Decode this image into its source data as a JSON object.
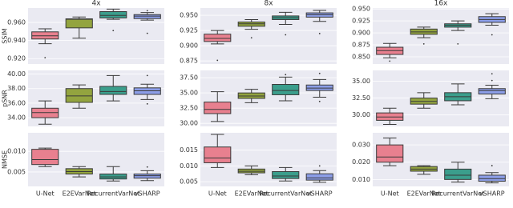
{
  "chart_data": [
    {
      "type": "box",
      "title": "4x",
      "ylabel": "SSIM",
      "colors": [
        "#e8808f",
        "#93a43f",
        "#3b9e8c",
        "#8c9ee8"
      ],
      "ylim": [
        0.914,
        0.976
      ],
      "yticks": [
        {
          "value": 0.92,
          "label": "0.920"
        },
        {
          "value": 0.94,
          "label": "0.940"
        },
        {
          "value": 0.96,
          "label": "0.960"
        }
      ],
      "grid": true,
      "boxes": [
        {
          "whislo": 0.9365,
          "q1": 0.9417,
          "med": 0.9452,
          "q3": 0.9496,
          "whishi": 0.953,
          "fliers": [
            0.921
          ]
        },
        {
          "whislo": 0.9426,
          "q1": 0.954,
          "med": 0.9635,
          "q3": 0.964,
          "whishi": 0.966,
          "fliers": []
        },
        {
          "whislo": 0.9635,
          "q1": 0.965,
          "med": 0.9678,
          "q3": 0.972,
          "whishi": 0.9748,
          "fliers": [
            0.951
          ]
        },
        {
          "whislo": 0.9626,
          "q1": 0.9643,
          "med": 0.967,
          "q3": 0.9687,
          "whishi": 0.971,
          "fliers": [
            0.973,
            0.948
          ]
        }
      ]
    },
    {
      "type": "box",
      "title": "8x",
      "colors": [
        "#e8808f",
        "#93a43f",
        "#3b9e8c",
        "#8c9ee8"
      ],
      "ylim": [
        0.87,
        0.962
      ],
      "yticks": [
        {
          "value": 0.875,
          "label": "0.875"
        },
        {
          "value": 0.9,
          "label": "0.900"
        },
        {
          "value": 0.925,
          "label": "0.925"
        },
        {
          "value": 0.95,
          "label": "0.950"
        }
      ],
      "grid": true,
      "boxes": [
        {
          "whislo": 0.903,
          "q1": 0.907,
          "med": 0.912,
          "q3": 0.919,
          "whishi": 0.925,
          "fliers": [
            0.876
          ]
        },
        {
          "whislo": 0.927,
          "q1": 0.932,
          "med": 0.936,
          "q3": 0.939,
          "whishi": 0.943,
          "fliers": [
            0.913
          ]
        },
        {
          "whislo": 0.935,
          "q1": 0.943,
          "med": 0.946,
          "q3": 0.949,
          "whishi": 0.955,
          "fliers": [
            0.918
          ]
        },
        {
          "whislo": 0.94,
          "q1": 0.947,
          "med": 0.951,
          "q3": 0.954,
          "whishi": 0.958,
          "fliers": [
            0.92
          ]
        }
      ]
    },
    {
      "type": "box",
      "title": "16x",
      "colors": [
        "#e8808f",
        "#93a43f",
        "#3b9e8c",
        "#8c9ee8"
      ],
      "ylim": [
        0.835,
        0.952
      ],
      "yticks": [
        {
          "value": 0.85,
          "label": "0.850"
        },
        {
          "value": 0.875,
          "label": "0.875"
        },
        {
          "value": 0.9,
          "label": "0.900"
        },
        {
          "value": 0.925,
          "label": "0.925"
        },
        {
          "value": 0.95,
          "label": "0.950"
        }
      ],
      "grid": true,
      "boxes": [
        {
          "whislo": 0.848,
          "q1": 0.855,
          "med": 0.863,
          "q3": 0.87,
          "whishi": 0.878,
          "fliers": [
            0.841
          ]
        },
        {
          "whislo": 0.89,
          "q1": 0.897,
          "med": 0.902,
          "q3": 0.908,
          "whishi": 0.912,
          "fliers": [
            0.877
          ]
        },
        {
          "whislo": 0.905,
          "q1": 0.912,
          "med": 0.916,
          "q3": 0.919,
          "whishi": 0.925,
          "fliers": [
            0.877
          ]
        },
        {
          "whislo": 0.916,
          "q1": 0.922,
          "med": 0.928,
          "q3": 0.934,
          "whishi": 0.94,
          "fliers": [
            0.896
          ]
        }
      ]
    },
    {
      "type": "box",
      "ylabel": "pSNR",
      "colors": [
        "#e8808f",
        "#93a43f",
        "#3b9e8c",
        "#8c9ee8"
      ],
      "ylim": [
        32.8,
        40.5
      ],
      "yticks": [
        {
          "value": 34,
          "label": "34.00"
        },
        {
          "value": 36,
          "label": "36.00"
        },
        {
          "value": 38,
          "label": "38.00"
        },
        {
          "value": 40,
          "label": "40.00"
        }
      ],
      "grid": true,
      "boxes": [
        {
          "whislo": 33.1,
          "q1": 34.0,
          "med": 34.7,
          "q3": 35.3,
          "whishi": 36.3,
          "fliers": []
        },
        {
          "whislo": 35.3,
          "q1": 36.1,
          "med": 37.0,
          "q3": 38.0,
          "whishi": 38.5,
          "fliers": []
        },
        {
          "whislo": 36.3,
          "q1": 37.2,
          "med": 37.6,
          "q3": 38.3,
          "whishi": 39.8,
          "fliers": []
        },
        {
          "whislo": 36.5,
          "q1": 37.2,
          "med": 37.7,
          "q3": 38.1,
          "whishi": 38.6,
          "fliers": [
            39.8,
            35.9
          ]
        }
      ]
    },
    {
      "type": "box",
      "colors": [
        "#e8808f",
        "#93a43f",
        "#3b9e8c",
        "#8c9ee8"
      ],
      "ylim": [
        29.5,
        38.7
      ],
      "yticks": [
        {
          "value": 30,
          "label": "30.00"
        },
        {
          "value": 32.5,
          "label": "32.50"
        },
        {
          "value": 35,
          "label": "35.00"
        },
        {
          "value": 37.5,
          "label": "37.50"
        }
      ],
      "grid": true,
      "boxes": [
        {
          "whislo": 30.3,
          "q1": 31.6,
          "med": 32.3,
          "q3": 33.5,
          "whishi": 35.2,
          "fliers": []
        },
        {
          "whislo": 33.4,
          "q1": 34.1,
          "med": 34.5,
          "q3": 35.0,
          "whishi": 35.6,
          "fliers": []
        },
        {
          "whislo": 33.7,
          "q1": 34.7,
          "med": 35.4,
          "q3": 36.4,
          "whishi": 37.6,
          "fliers": [
            38.0
          ]
        },
        {
          "whislo": 34.3,
          "q1": 35.4,
          "med": 35.8,
          "q3": 36.3,
          "whishi": 37.2,
          "fliers": [
            38.2,
            33.6
          ]
        }
      ]
    },
    {
      "type": "box",
      "colors": [
        "#e8808f",
        "#93a43f",
        "#3b9e8c",
        "#8c9ee8"
      ],
      "ylim": [
        28.3,
        36.6
      ],
      "yticks": [
        {
          "value": 30,
          "label": "30.00"
        },
        {
          "value": 32.5,
          "label": "32.50"
        },
        {
          "value": 35,
          "label": "35.00"
        }
      ],
      "grid": true,
      "boxes": [
        {
          "whislo": 28.6,
          "q1": 29.2,
          "med": 29.7,
          "q3": 30.3,
          "whishi": 31.0,
          "fliers": []
        },
        {
          "whislo": 31.0,
          "q1": 31.6,
          "med": 32.0,
          "q3": 32.5,
          "whishi": 33.3,
          "fliers": []
        },
        {
          "whislo": 31.5,
          "q1": 32.1,
          "med": 32.7,
          "q3": 33.3,
          "whishi": 34.6,
          "fliers": []
        },
        {
          "whislo": 32.4,
          "q1": 33.1,
          "med": 33.6,
          "q3": 33.9,
          "whishi": 34.4,
          "fliers": [
            36.1,
            35.1
          ]
        }
      ]
    },
    {
      "type": "box",
      "ylabel": "NMSE",
      "categories": [
        "U-Net",
        "E2EVarNet",
        "RecurrentVarNet",
        "vSHARP"
      ],
      "colors": [
        "#e8808f",
        "#93a43f",
        "#3b9e8c",
        "#8c9ee8"
      ],
      "ylim": [
        0.0015,
        0.0145
      ],
      "yticks": [
        0.005,
        {
          "value": 0.01,
          "label": "0.010"
        }
      ],
      "grid": true,
      "boxes": [
        {
          "whislo": 0.0063,
          "q1": 0.0068,
          "med": 0.008,
          "q3": 0.0105,
          "whishi": 0.0108,
          "fliers": []
        },
        {
          "whislo": 0.0038,
          "q1": 0.0045,
          "med": 0.0051,
          "q3": 0.0058,
          "whishi": 0.0063,
          "fliers": []
        },
        {
          "whislo": 0.0028,
          "q1": 0.0033,
          "med": 0.0038,
          "q3": 0.0045,
          "whishi": 0.0063,
          "fliers": []
        },
        {
          "whislo": 0.0029,
          "q1": 0.0035,
          "med": 0.0041,
          "q3": 0.0045,
          "whishi": 0.0053,
          "fliers": [
            0.0062
          ]
        }
      ]
    },
    {
      "type": "box",
      "categories": [
        "U-Net",
        "E2EVarNet",
        "RecurrentVarNet",
        "vSHARP"
      ],
      "colors": [
        "#e8808f",
        "#93a43f",
        "#3b9e8c",
        "#8c9ee8"
      ],
      "ylim": [
        0.0035,
        0.0205
      ],
      "yticks": [
        0.005,
        {
          "value": 0.01,
          "label": "0.010"
        },
        0.015
      ],
      "grid": true,
      "boxes": [
        {
          "whislo": 0.0095,
          "q1": 0.011,
          "med": 0.0125,
          "q3": 0.016,
          "whishi": 0.02,
          "fliers": []
        },
        {
          "whislo": 0.0072,
          "q1": 0.0078,
          "med": 0.0083,
          "q3": 0.009,
          "whishi": 0.01,
          "fliers": []
        },
        {
          "whislo": 0.0052,
          "q1": 0.006,
          "med": 0.0068,
          "q3": 0.0082,
          "whishi": 0.0095,
          "fliers": []
        },
        {
          "whislo": 0.0048,
          "q1": 0.0055,
          "med": 0.0062,
          "q3": 0.0075,
          "whishi": 0.0085,
          "fliers": [
            0.01
          ]
        }
      ]
    },
    {
      "type": "box",
      "categories": [
        "U-Net",
        "E2EVarNet",
        "RecurrentVarNet",
        "vSHARP"
      ],
      "colors": [
        "#e8808f",
        "#93a43f",
        "#3b9e8c",
        "#8c9ee8"
      ],
      "ylim": [
        0.006,
        0.037
      ],
      "yticks": [
        {
          "value": 0.01,
          "label": "0.010"
        },
        {
          "value": 0.02,
          "label": "0.020"
        },
        {
          "value": 0.03,
          "label": "0.030"
        }
      ],
      "grid": true,
      "boxes": [
        {
          "whislo": 0.018,
          "q1": 0.02,
          "med": 0.023,
          "q3": 0.03,
          "whishi": 0.034,
          "fliers": []
        },
        {
          "whislo": 0.013,
          "q1": 0.0148,
          "med": 0.016,
          "q3": 0.0175,
          "whishi": 0.018,
          "fliers": []
        },
        {
          "whislo": 0.0085,
          "q1": 0.01,
          "med": 0.0125,
          "q3": 0.016,
          "whishi": 0.02,
          "fliers": []
        },
        {
          "whislo": 0.008,
          "q1": 0.009,
          "med": 0.0105,
          "q3": 0.0125,
          "whishi": 0.014,
          "fliers": [
            0.018
          ]
        }
      ]
    }
  ]
}
